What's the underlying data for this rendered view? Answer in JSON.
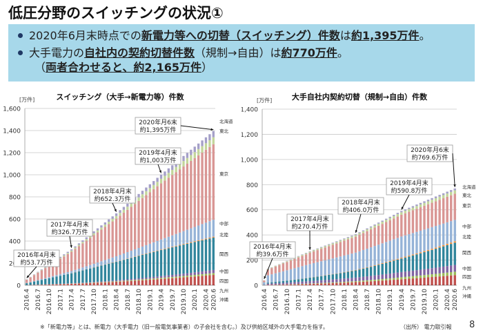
{
  "slide": {
    "title": "低圧分野のスイッチングの状況①",
    "page_number": "8",
    "footnote": "※「新電力等」とは、新電力（大手電力（旧一般電気事業者）の子会社を含む。）及び供給区域外の大手電力を指す。",
    "source": "（出所） 電力取引報"
  },
  "summary": {
    "bullet1": {
      "pre": "2020年6月末時点での",
      "bold1": "新電力等への切替（スイッチング）件数",
      "mid": "は",
      "bold2": "約1,395万件",
      "post": "。"
    },
    "bullet2": {
      "pre": "大手電力の",
      "bold1": "自社内の契約切替件数",
      "mid": "（規制→自由）は",
      "bold2": "約770万件",
      "post": "。"
    },
    "bullet2_line2": {
      "pre": "（",
      "bold": "両者合わせると、約2,165万件",
      "post": "）"
    }
  },
  "chart_data": [
    {
      "type": "bar",
      "stacked": true,
      "title": "スイッチング（大手→新電力等）件数",
      "ylabel": "[万件]",
      "ylim": [
        0,
        1600
      ],
      "yticks": [
        0,
        200,
        400,
        600,
        800,
        1000,
        1200,
        1400,
        1600
      ],
      "ytick_labels": [
        "0",
        "200",
        "400",
        "600",
        "800",
        "1,000",
        "1,200",
        "1,400",
        "1,600"
      ],
      "grid": true,
      "legend_placement": "right",
      "x_start": "2016.4",
      "x_end": "2020.6",
      "num_bars": 51,
      "xtick_labels": [
        "2016.4",
        "2016.7",
        "2016.10",
        "2017.1",
        "2017.4",
        "2017.7",
        "2017.10",
        "2018.1",
        "2018.4",
        "2018.7",
        "2018.10",
        "2019.1",
        "2019.4",
        "2019.7",
        "2019.10",
        "2020.1",
        "2020.4",
        "2020.6"
      ],
      "totals_keypoints": [
        {
          "index": 0,
          "value": 53.7
        },
        {
          "index": 12,
          "value": 326.7
        },
        {
          "index": 24,
          "value": 652.3
        },
        {
          "index": 36,
          "value": 1003
        },
        {
          "index": 50,
          "value": 1395
        }
      ],
      "series_share_end": {
        "沖縄": 0.002,
        "九州": 0.065,
        "四国": 0.012,
        "中国": 0.02,
        "関西": 0.21,
        "北陸": 0.006,
        "中部": 0.11,
        "東京": 0.49,
        "東北": 0.045,
        "北海道": 0.04
      },
      "series_share_start": {
        "沖縄": 0.0,
        "九州": 0.03,
        "四国": 0.005,
        "中国": 0.005,
        "関西": 0.3,
        "北陸": 0.002,
        "中部": 0.04,
        "東京": 0.55,
        "東北": 0.03,
        "北海道": 0.033
      },
      "series": [
        {
          "name": "沖縄",
          "color": "#7f1d1d"
        },
        {
          "name": "九州",
          "color": "#c0504d"
        },
        {
          "name": "四国",
          "color": "#9bbb59"
        },
        {
          "name": "中国",
          "color": "#8064a2"
        },
        {
          "name": "関西",
          "color": "#31859c"
        },
        {
          "name": "北陸",
          "color": "#f79646"
        },
        {
          "name": "中部",
          "color": "#95b3d7"
        },
        {
          "name": "東京",
          "color": "#d99694"
        },
        {
          "name": "東北",
          "color": "#c3d69b"
        },
        {
          "name": "北海道",
          "color": "#a5a0c8"
        }
      ],
      "annotations": [
        {
          "index": 0,
          "text1": "2016年4月末",
          "text2": "約53.7万件"
        },
        {
          "index": 12,
          "text1": "2017年4月末",
          "text2": "約326.7万件"
        },
        {
          "index": 24,
          "text1": "2018年4月末",
          "text2": "約652.3万件"
        },
        {
          "index": 36,
          "text1": "2019年4月末",
          "text2": "約1,003万件"
        },
        {
          "index": 50,
          "text1": "2020年月6末",
          "text2": "約1,395万件"
        }
      ],
      "legend_labels": [
        "北海道",
        "東北",
        "東京",
        "中部",
        "北陸",
        "関西",
        "中国",
        "四国",
        "九州",
        "沖縄"
      ]
    },
    {
      "type": "bar",
      "stacked": true,
      "title": "大手自社内契約切替（規制→自由）件数",
      "ylabel": "[万件]",
      "ylim": [
        0,
        1400
      ],
      "yticks": [
        0,
        200,
        400,
        600,
        800,
        1000,
        1200,
        1400
      ],
      "ytick_labels": [
        "0",
        "200",
        "400",
        "600",
        "800",
        "1,000",
        "1,200",
        "1,400"
      ],
      "grid": true,
      "legend_placement": "right",
      "x_start": "2016.4",
      "x_end": "2020.6",
      "num_bars": 51,
      "xtick_labels": [
        "2016.4",
        "2016.7",
        "2016.10",
        "2017.1",
        "2017.4",
        "2017.7",
        "2017.10",
        "2018.1",
        "2018.4",
        "2018.7",
        "2018.10",
        "2019.1",
        "2019.4",
        "2019.7",
        "2019.10",
        "2020.1",
        "2020.4",
        "2020.6"
      ],
      "totals_keypoints": [
        {
          "index": 0,
          "value": 39.6
        },
        {
          "index": 1,
          "value": 130
        },
        {
          "index": 12,
          "value": 270.4
        },
        {
          "index": 24,
          "value": 406.0
        },
        {
          "index": 36,
          "value": 590.8
        },
        {
          "index": 50,
          "value": 769.6
        }
      ],
      "series_share_end": {
        "沖縄": 0.005,
        "九州": 0.1,
        "四国": 0.035,
        "中国": 0.07,
        "関西": 0.23,
        "北陸": 0.015,
        "中部": 0.22,
        "東京": 0.27,
        "東北": 0.035,
        "北海道": 0.02
      },
      "series_share_start": {
        "沖縄": 0.0,
        "九州": 0.02,
        "四国": 0.005,
        "中国": 0.07,
        "関西": 0.06,
        "北陸": 0.002,
        "中部": 0.45,
        "東京": 0.35,
        "東北": 0.03,
        "北海道": 0.013
      },
      "series": [
        {
          "name": "沖縄",
          "color": "#7f1d1d"
        },
        {
          "name": "九州",
          "color": "#c0504d"
        },
        {
          "name": "四国",
          "color": "#9bbb59"
        },
        {
          "name": "中国",
          "color": "#8064a2"
        },
        {
          "name": "関西",
          "color": "#31859c"
        },
        {
          "name": "北陸",
          "color": "#f79646"
        },
        {
          "name": "中部",
          "color": "#95b3d7"
        },
        {
          "name": "東京",
          "color": "#d99694"
        },
        {
          "name": "東北",
          "color": "#c3d69b"
        },
        {
          "name": "北海道",
          "color": "#a5a0c8"
        }
      ],
      "annotations": [
        {
          "index": 0,
          "text1": "2016年4月末",
          "text2": "約39.6万件"
        },
        {
          "index": 12,
          "text1": "2017年4月末",
          "text2": "約270.4万件"
        },
        {
          "index": 24,
          "text1": "2018年4月末",
          "text2": "約406.0万件"
        },
        {
          "index": 36,
          "text1": "2019年4月末",
          "text2": "約590.8万件"
        },
        {
          "index": 50,
          "text1": "2020年月6末",
          "text2": "約769.6万件"
        }
      ],
      "legend_labels": [
        "北海道",
        "東北",
        "東京",
        "中部",
        "北陸",
        "関西",
        "中国",
        "四国",
        "九州",
        "沖縄"
      ]
    }
  ]
}
